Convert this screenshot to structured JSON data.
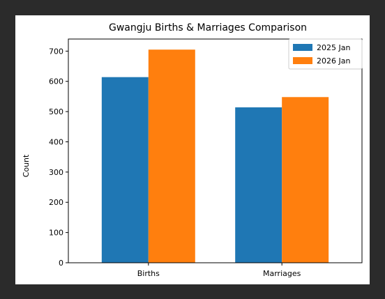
{
  "colors": {
    "page_background": "#2b2b2b",
    "figure_background": "#ffffff",
    "axis_color": "#000000"
  },
  "chart_data": {
    "type": "bar",
    "title": "Gwangju Births & Marriages Comparison",
    "xlabel": "",
    "ylabel": "Count",
    "categories": [
      "Births",
      "Marriages"
    ],
    "series": [
      {
        "name": "2025 Jan",
        "color": "#1f77b4",
        "values": [
          614,
          514
        ]
      },
      {
        "name": "2026 Jan",
        "color": "#ff7f0e",
        "values": [
          705,
          548
        ]
      }
    ],
    "ylim": [
      0,
      740
    ],
    "yticks": [
      0,
      100,
      200,
      300,
      400,
      500,
      600,
      700
    ],
    "grid": false,
    "legend_position": "top-right"
  }
}
